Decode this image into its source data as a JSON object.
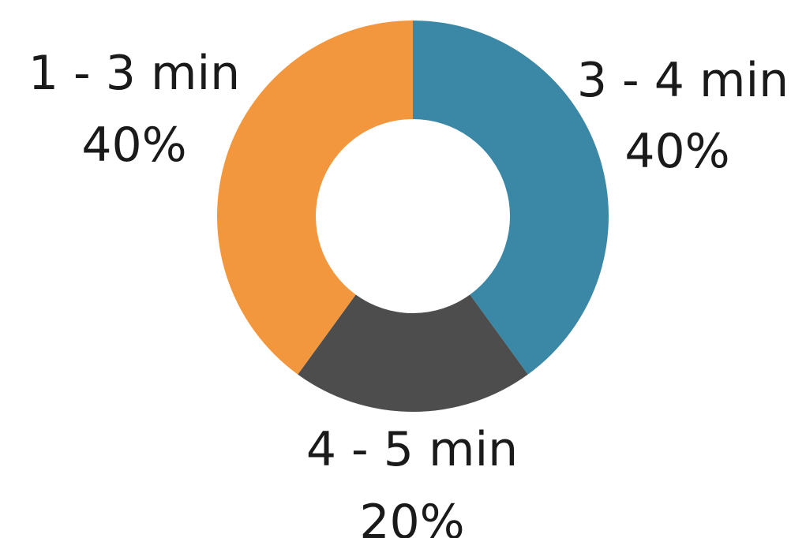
{
  "chart_data": {
    "type": "pie",
    "donut": true,
    "categories": [
      "3 - 4 min",
      "4 - 5 min",
      "1 - 3 min"
    ],
    "values": [
      40,
      20,
      40
    ],
    "value_labels": [
      "40%",
      "20%",
      "40%"
    ],
    "colors": [
      "#3a88a5",
      "#4d4d4d",
      "#f3973f"
    ],
    "title": "",
    "legend": "none"
  }
}
